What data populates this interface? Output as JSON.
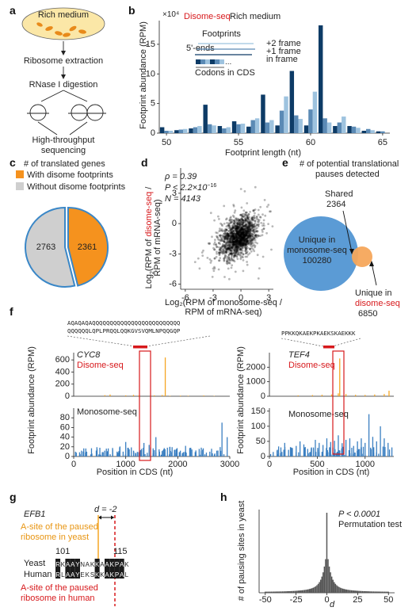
{
  "labels": {
    "a": "a",
    "b": "b",
    "c": "c",
    "d": "d",
    "e": "e",
    "f": "f",
    "g": "g",
    "h": "h"
  },
  "panel_a": {
    "dish": "Rich medium",
    "steps": [
      "Ribosome extraction",
      "RNase I digestion",
      "High-throughput",
      "sequencing"
    ]
  },
  "panel_b": {
    "title_red": "Disome-seq",
    "title_rest": "Rich medium",
    "exp": "×10⁴",
    "legend": {
      "footprints": "Footprints",
      "ends": "5'-ends",
      "f2": "+2 frame",
      "f1": "+1 frame",
      "f0": "in frame",
      "codons": "Codons in CDS"
    },
    "colors": {
      "in_frame": "#0d3b66",
      "plus1": "#5b8ab5",
      "plus2": "#9ec3df"
    }
  },
  "panel_c": {
    "title": "# of translated genes",
    "legend": [
      "With disome footprints",
      "Without disome footprints"
    ],
    "colors": {
      "with": "#f5921e",
      "without": "#cfcfcf",
      "edge": "#3a87c7"
    }
  },
  "panel_d": {
    "stats": {
      "rho": "ρ = 0.39",
      "p": "P < 2.2×10",
      "p_exp": "−16",
      "n": "N = 4143"
    },
    "ylabel_parts": [
      "Log",
      "2",
      "(RPM of ",
      "disome-seq",
      " /"
    ],
    "ylabel_line2": "RPM of mRNA-seq)",
    "xlabel_line1": "Log₂(RPM of monosome-seq /",
    "xlabel_line2": "RPM of mRNA-seq)"
  },
  "panel_e": {
    "title1": "# of potential translational",
    "title2": "pauses detected",
    "shared_label": "Shared",
    "shared_value": "2364",
    "mono_line1": "Unique in",
    "mono_line2": "monosome-seq",
    "mono_value": "100280",
    "di_line1": "Unique in",
    "di_line2": "disome-seq",
    "di_value": "6850"
  },
  "panel_f": {
    "ylabel": "Footprint abundance (RPM)",
    "xlabel": "Position in CDS (nt)",
    "left": {
      "gene": "CYC8",
      "seq1": "AQAQAQAQQQQQQQQQQQQQQQQQQQQQQQQQ",
      "seq2": "QQQQQQLQPLPRQQLQQKGVSVQMLNPQQGQP",
      "disome_label": "Disome-seq",
      "mono_label": "Monosome-seq"
    },
    "right": {
      "gene": "TEF4",
      "seq1": "PPKKQKAEKPKAEKSKAEKKK",
      "disome_label": "Disome-seq",
      "mono_label": "Monosome-seq"
    }
  },
  "panel_g": {
    "gene": "EFB1",
    "d_label": "d = -2",
    "yeast_site1": "A-site of the paused",
    "yeast_site2": "ribosome in yeast",
    "human_site1": "A-site of the paused",
    "human_site2": "ribosome in human",
    "pos_start": "101",
    "pos_end": "115",
    "yeast_label": "Yeast",
    "human_label": "Human",
    "yeast_seq": "RKAAYNAKKAAKPAK",
    "human_seq": "RLAAYEKSKKAKPAL"
  },
  "panel_h": {
    "stat1": "P < 0.0001",
    "stat2": "Permutation test",
    "ylabel": "# of pausing sites in yeast",
    "xlabel": "d"
  },
  "chart_data": [
    {
      "type": "bar",
      "panel": "b",
      "xlabel": "Footprint length (nt)",
      "ylabel": "Footprint abundance (RPM)",
      "x_ticks": [
        50,
        55,
        60,
        65
      ],
      "y_ticks": [
        0,
        5,
        10,
        15
      ],
      "xlim": [
        49.5,
        65.5
      ],
      "ylim": [
        0,
        19
      ],
      "series": [
        {
          "name": "in frame",
          "x": [
            49.7,
            50.7,
            51.7,
            52.7,
            53.7,
            54.7,
            55.7,
            56.7,
            57.7,
            58.7,
            59.7,
            60.7,
            61.7,
            62.7,
            63.7,
            64.7
          ],
          "values": [
            1.0,
            0.5,
            0.8,
            4.8,
            1.2,
            2.0,
            1.1,
            6.5,
            1.3,
            10.5,
            1.3,
            18.2,
            1.2,
            1.2,
            0.4,
            0.3
          ]
        },
        {
          "name": "+1 frame",
          "x": [
            50.0,
            51.0,
            52.0,
            53.0,
            54.0,
            55.0,
            56.0,
            57.0,
            58.0,
            59.0,
            60.0,
            61.0,
            62.0,
            63.0,
            64.0,
            65.0
          ],
          "values": [
            0.4,
            0.6,
            1.0,
            1.5,
            0.8,
            1.5,
            2.2,
            1.8,
            3.8,
            3.0,
            4.0,
            2.5,
            1.8,
            1.1,
            0.7,
            0.3
          ]
        },
        {
          "name": "+2 frame",
          "x": [
            50.3,
            51.3,
            52.3,
            53.3,
            54.3,
            55.3,
            56.3,
            57.3,
            58.3,
            59.3,
            60.3,
            61.3,
            62.3,
            63.3,
            64.3
          ],
          "values": [
            0.4,
            0.7,
            1.2,
            1.3,
            1.0,
            1.6,
            2.5,
            2.2,
            6.2,
            2.4,
            7.0,
            1.8,
            2.8,
            0.9,
            0.5
          ]
        }
      ]
    },
    {
      "type": "pie",
      "panel": "c",
      "labels": [
        "With disome footprints",
        "Without disome footprints"
      ],
      "values": [
        2361,
        2763
      ]
    },
    {
      "type": "scatter",
      "panel": "d",
      "n": 4143,
      "xlim": [
        -6.5,
        3.5
      ],
      "ylim": [
        -6.5,
        5.5
      ],
      "x_ticks": [
        -6,
        -3,
        0,
        3
      ],
      "y_ticks": [
        -6,
        -3,
        0,
        3
      ],
      "center": [
        -0.2,
        -1.3
      ],
      "rho": 0.39
    },
    {
      "type": "bar",
      "panel": "f-left-disome",
      "gene": "CYC8",
      "ylim": [
        0,
        720
      ],
      "y_ticks": [
        0,
        200,
        400,
        600
      ],
      "x": [
        600,
        700,
        1000,
        1150,
        1250,
        1480,
        1550,
        1700,
        1760,
        1850,
        2050,
        2200,
        2500,
        2700
      ],
      "values": [
        18,
        28,
        15,
        22,
        12,
        10,
        15,
        20,
        640,
        8,
        10,
        8,
        12,
        6
      ]
    },
    {
      "type": "bar",
      "panel": "f-left-monosome",
      "gene": "CYC8",
      "xlim": [
        0,
        3000
      ],
      "x_ticks": [
        0,
        1000,
        2000,
        3000
      ],
      "ylim": [
        0,
        100
      ],
      "y_ticks": [
        0,
        20,
        40,
        60,
        80
      ],
      "x": [
        50,
        150,
        250,
        350,
        450,
        550,
        650,
        750,
        850,
        950,
        1050,
        1150,
        1250,
        1350,
        1450,
        1550,
        1650,
        1750,
        1850,
        1950,
        2050,
        2150,
        2250,
        2350,
        2450,
        2550,
        2650,
        2750,
        2850,
        2950,
        1000,
        1580
      ],
      "values": [
        8,
        12,
        10,
        6,
        15,
        9,
        11,
        14,
        8,
        10,
        18,
        12,
        9,
        28,
        24,
        13,
        10,
        8,
        20,
        14,
        12,
        22,
        18,
        9,
        11,
        8,
        16,
        12,
        70,
        40,
        30,
        40
      ]
    },
    {
      "type": "bar",
      "panel": "f-right-disome",
      "gene": "TEF4",
      "ylim": [
        0,
        3000
      ],
      "y_ticks": [
        0,
        1000,
        2000
      ],
      "x": [
        300,
        450,
        550,
        650,
        720,
        735,
        800,
        900,
        1000,
        1100,
        1200,
        1250
      ],
      "values": [
        60,
        80,
        100,
        120,
        200,
        2600,
        150,
        100,
        90,
        120,
        150,
        380
      ]
    },
    {
      "type": "bar",
      "panel": "f-right-monosome",
      "gene": "TEF4",
      "xlim": [
        0,
        1300
      ],
      "x_ticks": [
        0,
        500,
        1000
      ],
      "ylim": [
        0,
        160
      ],
      "y_ticks": [
        0,
        50,
        100,
        150
      ],
      "x": [
        40,
        80,
        120,
        160,
        200,
        240,
        280,
        320,
        360,
        400,
        440,
        480,
        520,
        560,
        600,
        640,
        680,
        720,
        760,
        800,
        840,
        880,
        920,
        960,
        1000,
        1040,
        1080,
        1120,
        1160,
        1200,
        1240,
        1280
      ],
      "values": [
        15,
        20,
        30,
        45,
        22,
        28,
        35,
        50,
        40,
        25,
        30,
        55,
        45,
        38,
        60,
        48,
        52,
        70,
        44,
        55,
        60,
        35,
        50,
        60,
        45,
        140,
        65,
        50,
        100,
        60,
        45,
        30
      ]
    },
    {
      "type": "bar",
      "panel": "h",
      "xlabel": "d",
      "ylabel": "# of pausing sites in yeast",
      "x_ticks": [
        -50,
        -25,
        0,
        25,
        50
      ],
      "xlim": [
        -55,
        55
      ]
    }
  ]
}
